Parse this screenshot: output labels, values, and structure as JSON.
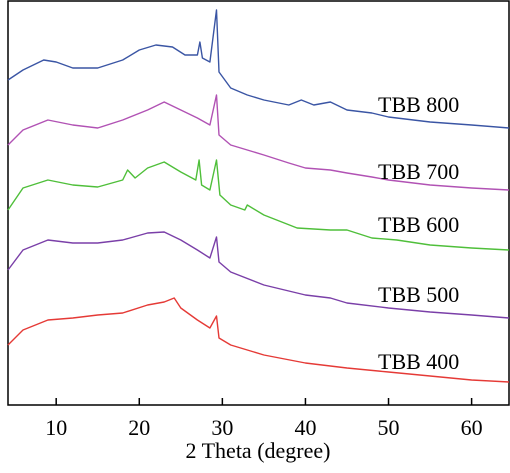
{
  "chart_data": {
    "type": "line",
    "xlabel": "2 Theta (degree)",
    "xlim": [
      4.2,
      64.5
    ],
    "xticks": [
      10,
      20,
      30,
      40,
      50,
      60
    ],
    "ylim": [
      0,
      405
    ],
    "series": [
      {
        "name": "TBB 800",
        "color": "#3a55a4",
        "x": [
          4.2,
          6,
          8.5,
          10,
          12,
          15,
          18,
          20,
          22,
          24,
          25.5,
          27,
          27.3,
          27.6,
          28.5,
          29.3,
          29.6,
          31,
          33,
          35,
          38,
          39.5,
          41,
          43,
          45,
          48,
          50,
          55,
          60,
          64.5
        ],
        "values": [
          325,
          335,
          345,
          343,
          337,
          337,
          345,
          355,
          360,
          358,
          350,
          350,
          363,
          347,
          343,
          395,
          333,
          317,
          310,
          305,
          300,
          305,
          300,
          303,
          295,
          292,
          288,
          283,
          280,
          277
        ]
      },
      {
        "name": "TBB 700",
        "color": "#b152b4",
        "x": [
          4.2,
          6,
          9,
          12,
          15,
          18,
          21,
          23,
          25,
          27,
          28.5,
          29.3,
          29.6,
          31,
          35,
          38,
          40,
          43,
          45,
          48,
          50,
          55,
          60,
          64.5
        ],
        "values": [
          260,
          275,
          285,
          280,
          277,
          285,
          295,
          303,
          295,
          287,
          280,
          310,
          270,
          260,
          250,
          242,
          237,
          235,
          232,
          228,
          225,
          220,
          217,
          215
        ]
      },
      {
        "name": "TBB 600",
        "color": "#4fbf3a",
        "x": [
          4.2,
          6,
          9,
          12,
          15,
          18,
          18.6,
          19.5,
          21,
          23,
          25,
          26.8,
          27.2,
          27.5,
          28.5,
          29.3,
          29.7,
          31,
          32.7,
          33,
          35,
          39,
          43,
          45,
          48,
          51,
          55,
          60,
          64.5
        ],
        "values": [
          195,
          217,
          225,
          220,
          218,
          225,
          235,
          227,
          237,
          243,
          233,
          225,
          245,
          220,
          215,
          245,
          210,
          200,
          195,
          200,
          190,
          177,
          175,
          175,
          167,
          165,
          160,
          157,
          155
        ]
      },
      {
        "name": "TBB 500",
        "color": "#7a3fa8",
        "x": [
          4.2,
          6,
          9,
          12,
          15,
          18,
          21,
          23,
          25,
          27,
          28.5,
          29.3,
          29.6,
          31,
          35,
          40,
          43,
          45,
          50,
          55,
          60,
          64.5
        ],
        "values": [
          135,
          155,
          165,
          162,
          162,
          165,
          172,
          173,
          165,
          155,
          147,
          168,
          143,
          133,
          120,
          110,
          107,
          102,
          97,
          93,
          90,
          87
        ]
      },
      {
        "name": "TBB 400",
        "color": "#e53a36",
        "x": [
          4.2,
          6,
          9,
          12,
          15,
          18,
          21,
          23,
          24.2,
          25,
          27,
          28.5,
          29.3,
          29.6,
          31,
          35,
          40,
          45,
          50,
          55,
          60,
          64.5
        ],
        "values": [
          60,
          75,
          85,
          87,
          90,
          92,
          100,
          103,
          107,
          97,
          85,
          77,
          89,
          67,
          60,
          50,
          42,
          37,
          33,
          29,
          25,
          23
        ]
      }
    ]
  }
}
